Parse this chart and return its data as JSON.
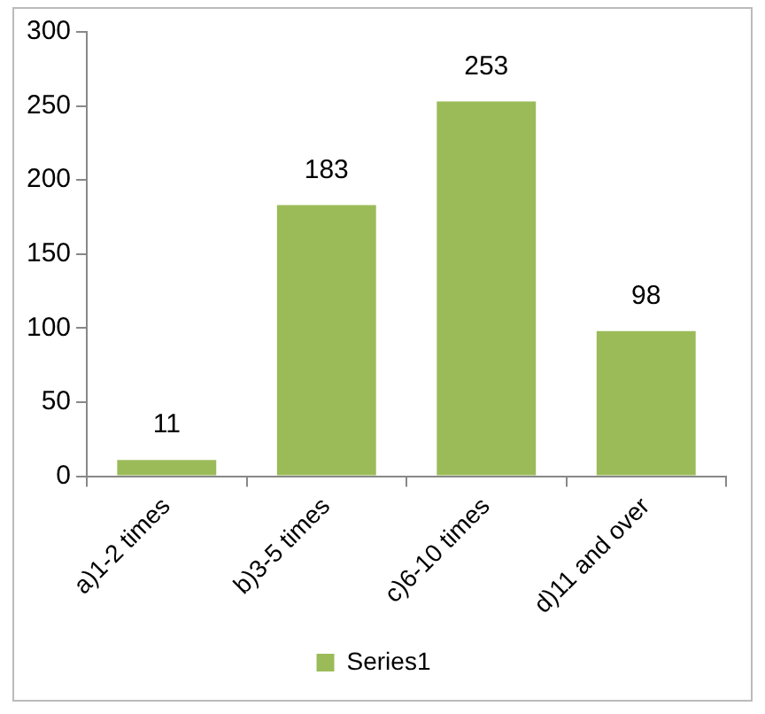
{
  "chart_data": {
    "type": "bar",
    "categories": [
      "a)1-2 times",
      "b)3-5 times",
      "c)6-10 times",
      "d)11 and over"
    ],
    "series": [
      {
        "name": "Series1",
        "color": "#9bbb59",
        "values": [
          11,
          183,
          253,
          98
        ]
      }
    ],
    "ylim": [
      0,
      300
    ],
    "yticks": [
      0,
      50,
      100,
      150,
      200,
      250,
      300
    ],
    "grid": false,
    "legend": "bottom",
    "data_labels": true
  }
}
